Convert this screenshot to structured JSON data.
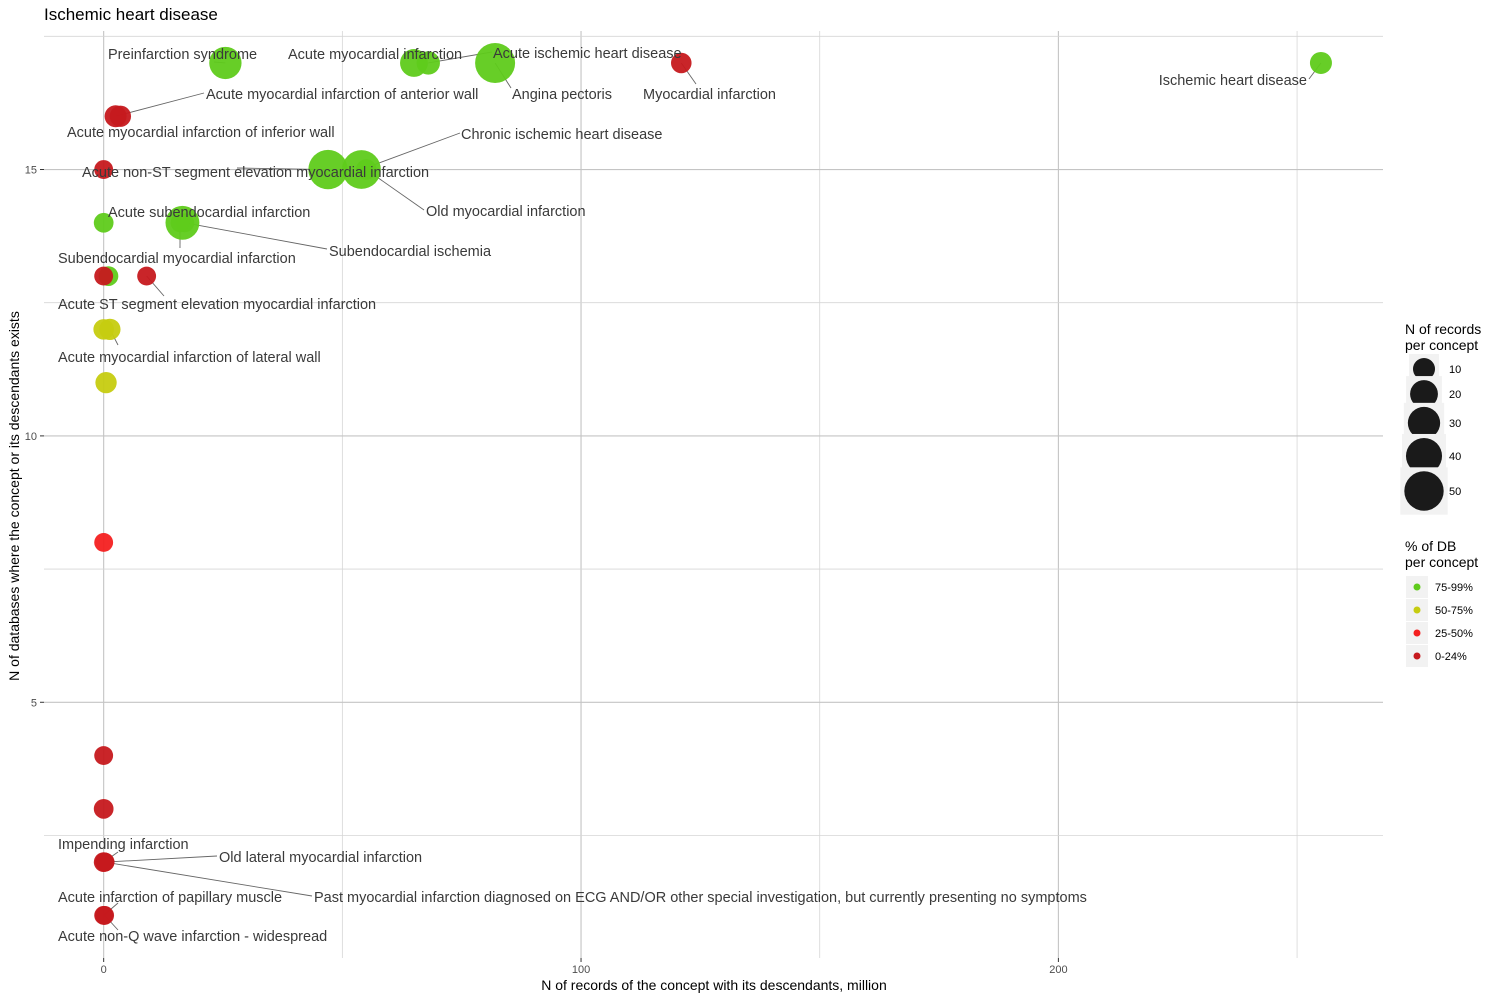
{
  "chart_data": {
    "type": "scatter",
    "title": "Ischemic heart disease",
    "xlabel": "N of records of the concept with its descendants, million",
    "ylabel": "N of databases where the concept or its descendants exists",
    "xlim": [
      -12.5,
      268
    ],
    "ylim": [
      0.2,
      17.6
    ],
    "x_ticks": [
      0,
      100,
      200
    ],
    "y_ticks": [
      5,
      10,
      15
    ],
    "grid": true,
    "colors": {
      "75-99%": "#5fcb1b",
      "50-75%": "#c6cc10",
      "25-50%": "#f42020",
      "0-24%": "#c6191e"
    },
    "points": [
      {
        "label": "Ischemic heart disease",
        "x": 255,
        "y": 17,
        "size": 10,
        "group": "75-99%"
      },
      {
        "label": "Myocardial infarction",
        "x": 121,
        "y": 17,
        "size": 8,
        "group": "0-24%"
      },
      {
        "label": "Angina pectoris",
        "x": 82,
        "y": 17,
        "size": 52,
        "group": "75-99%"
      },
      {
        "label": "Acute myocardial infarction",
        "x": 65,
        "y": 17,
        "size": 20,
        "group": "75-99%"
      },
      {
        "label": "Acute ischemic heart disease",
        "x": 68,
        "y": 17,
        "size": 12,
        "group": "75-99%"
      },
      {
        "label": "Preinfarction syndrome",
        "x": 25.5,
        "y": 17,
        "size": 30,
        "group": "75-99%"
      },
      {
        "label": "Acute myocardial infarction of anterior wall",
        "x": 2.5,
        "y": 16,
        "size": 10,
        "group": "0-24%"
      },
      {
        "label": "Acute myocardial infarction of inferior wall",
        "x": 3.5,
        "y": 16,
        "size": 9,
        "group": "0-24%"
      },
      {
        "label": "Chronic ischemic heart disease",
        "x": 54,
        "y": 15,
        "size": 48,
        "group": "75-99%"
      },
      {
        "label": "Acute non-ST segment elevation myocardial infarction",
        "x": 47,
        "y": 15,
        "size": 50,
        "group": "75-99%"
      },
      {
        "label": "Old myocardial infarction",
        "x": 55,
        "y": 15,
        "size": 8,
        "group": "75-99%"
      },
      {
        "label": "",
        "x": 0,
        "y": 15,
        "size": 6,
        "group": "0-24%"
      },
      {
        "label": "Acute subendocardial infarction",
        "x": 16.5,
        "y": 14,
        "size": 34,
        "group": "75-99%"
      },
      {
        "label": "Subendocardial ischemia",
        "x": 17,
        "y": 14,
        "size": 6,
        "group": "75-99%"
      },
      {
        "label": "Subendocardial myocardial infarction",
        "x": 16,
        "y": 14,
        "size": 6,
        "group": "75-99%"
      },
      {
        "label": "",
        "x": 0,
        "y": 14,
        "size": 7,
        "group": "75-99%"
      },
      {
        "label": "",
        "x": 1,
        "y": 13,
        "size": 7,
        "group": "75-99%"
      },
      {
        "label": "",
        "x": 0,
        "y": 13,
        "size": 6,
        "group": "0-24%"
      },
      {
        "label": "Acute ST segment elevation myocardial infarction",
        "x": 9,
        "y": 13,
        "size": 6,
        "group": "0-24%"
      },
      {
        "label": "",
        "x": 0,
        "y": 12,
        "size": 8,
        "group": "50-75%"
      },
      {
        "label": "Acute myocardial infarction of lateral wall",
        "x": 1.3,
        "y": 12,
        "size": 9,
        "group": "50-75%"
      },
      {
        "label": "",
        "x": 0.5,
        "y": 11,
        "size": 9,
        "group": "50-75%"
      },
      {
        "label": "",
        "x": 0,
        "y": 8,
        "size": 6,
        "group": "25-50%"
      },
      {
        "label": "",
        "x": 0,
        "y": 4,
        "size": 6,
        "group": "0-24%"
      },
      {
        "label": "",
        "x": 0,
        "y": 3,
        "size": 7,
        "group": "0-24%"
      },
      {
        "label": "Impending infarction",
        "x": 0,
        "y": 2,
        "size": 7,
        "group": "0-24%"
      },
      {
        "label": "Old lateral myocardial infarction",
        "x": 0.3,
        "y": 2,
        "size": 6,
        "group": "0-24%"
      },
      {
        "label": "Past myocardial infarction diagnosed on ECG AND/OR other special investigation, but currently presenting no symptoms",
        "x": 0.2,
        "y": 2,
        "size": 6,
        "group": "0-24%"
      },
      {
        "label": "Acute infarction of papillary muscle",
        "x": 0,
        "y": 1,
        "size": 6,
        "group": "0-24%"
      },
      {
        "label": "Acute non-Q wave infarction - widespread",
        "x": 0.2,
        "y": 1,
        "size": 6,
        "group": "0-24%"
      }
    ],
    "legend_size": {
      "title_lines": [
        "N of records",
        "per concept"
      ],
      "values": [
        10,
        20,
        30,
        40,
        50
      ],
      "placement": "right"
    },
    "legend_color": {
      "title_lines": [
        "% of DB",
        "per concept"
      ],
      "entries": [
        "75-99%",
        "50-75%",
        "25-50%",
        "0-24%"
      ],
      "placement": "right"
    }
  }
}
